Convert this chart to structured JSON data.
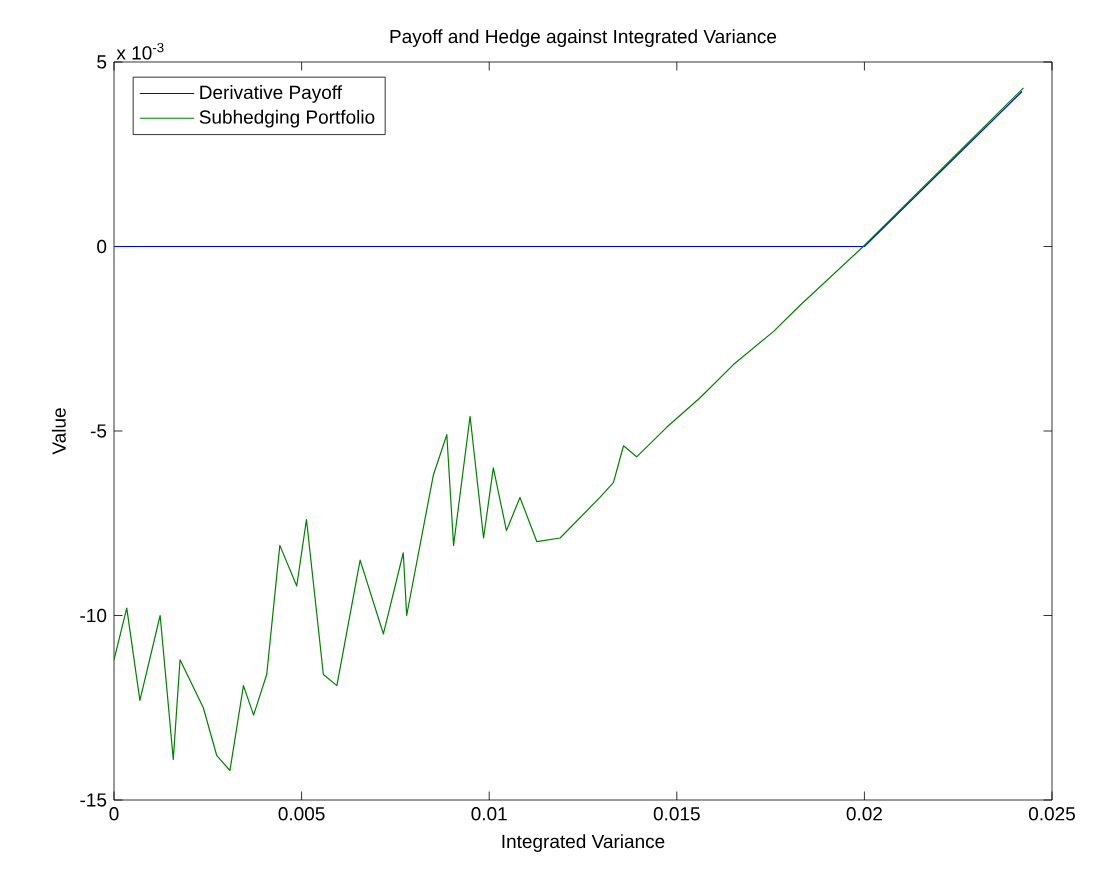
{
  "chart_data": {
    "type": "line",
    "title": "Payoff and Hedge against Integrated Variance",
    "xlabel": "Integrated Variance",
    "ylabel": "Value",
    "annotations": [
      "x 10$^{-3}$"
    ],
    "xlim": [
      0,
      0.025
    ],
    "xticks": [
      0,
      0.005,
      0.01,
      0.015,
      0.02,
      0.025
    ],
    "ylim": [
      -15,
      5
    ],
    "yticks": [
      -15,
      -10,
      -5,
      0,
      5
    ],
    "legend": "top left",
    "series": [
      {
        "name": "Derivative Payoff",
        "color": "#0000ff",
        "x": [
          0,
          0.02,
          0.0242
        ],
        "values": [
          0,
          0,
          4.2
        ]
      },
      {
        "name": "Subhedging Portfolio",
        "color": "#008000",
        "x": [
          0,
          0.00034,
          0.00069,
          0.00123,
          0.00158,
          0.00176,
          0.00238,
          0.00274,
          0.00309,
          0.00345,
          0.00372,
          0.00407,
          0.00442,
          0.00487,
          0.00513,
          0.00558,
          0.00594,
          0.00656,
          0.00718,
          0.00771,
          0.0078,
          0.00851,
          0.00887,
          0.00905,
          0.00949,
          0.00985,
          0.01011,
          0.01046,
          0.01082,
          0.01127,
          0.01189,
          0.01295,
          0.01331,
          0.01358,
          0.01393,
          0.01473,
          0.01562,
          0.01651,
          0.01758,
          0.01828,
          0.01997,
          0.02424
        ],
        "values": [
          -11.2,
          -9.8,
          -12.3,
          -10.0,
          -13.9,
          -11.2,
          -12.5,
          -13.8,
          -14.2,
          -11.9,
          -12.7,
          -11.6,
          -8.1,
          -9.2,
          -7.4,
          -11.6,
          -11.9,
          -8.5,
          -10.5,
          -8.3,
          -10.0,
          -6.2,
          -5.1,
          -8.1,
          -4.6,
          -7.9,
          -6.0,
          -7.7,
          -6.8,
          -8.0,
          -7.9,
          -6.8,
          -6.4,
          -5.4,
          -5.7,
          -4.9,
          -4.1,
          -3.2,
          -2.3,
          -1.6,
          0,
          4.3
        ]
      }
    ]
  }
}
